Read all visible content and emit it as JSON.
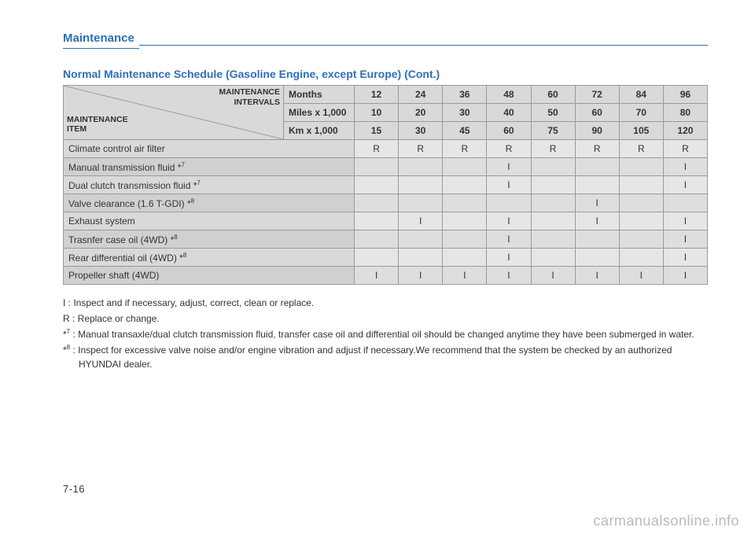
{
  "header": {
    "section": "Maintenance"
  },
  "title": "Normal Maintenance Schedule (Gasoline Engine, except Europe) (Cont.)",
  "corner": {
    "top": "MAINTENANCE\nINTERVALS",
    "bottom": "MAINTENANCE\nITEM"
  },
  "intervals": {
    "labels": [
      "Months",
      "Miles x 1,000",
      "Km x 1,000"
    ],
    "values": [
      [
        "12",
        "24",
        "36",
        "48",
        "60",
        "72",
        "84",
        "96"
      ],
      [
        "10",
        "20",
        "30",
        "40",
        "50",
        "60",
        "70",
        "80"
      ],
      [
        "15",
        "30",
        "45",
        "60",
        "75",
        "90",
        "105",
        "120"
      ]
    ]
  },
  "items": [
    {
      "name": "Climate control air filter",
      "cells": [
        "R",
        "R",
        "R",
        "R",
        "R",
        "R",
        "R",
        "R"
      ]
    },
    {
      "name": "Manual transmission fluid *",
      "sup": "7",
      "cells": [
        "",
        "",
        "",
        "I",
        "",
        "",
        "",
        "I"
      ]
    },
    {
      "name": "Dual clutch transmission fluid *",
      "sup": "7",
      "cells": [
        "",
        "",
        "",
        "I",
        "",
        "",
        "",
        "I"
      ]
    },
    {
      "name": "Valve clearance (1.6 T-GDI) *",
      "sup": "8",
      "cells": [
        "",
        "",
        "",
        "",
        "",
        "I",
        "",
        ""
      ]
    },
    {
      "name": "Exhaust system",
      "cells": [
        "",
        "I",
        "",
        "I",
        "",
        "I",
        "",
        "I"
      ]
    },
    {
      "name": "Trasnfer case oil (4WD) *",
      "sup": "8",
      "cells": [
        "",
        "",
        "",
        "I",
        "",
        "",
        "",
        "I"
      ]
    },
    {
      "name": "Rear differential oil (4WD) *",
      "sup": "8",
      "cells": [
        "",
        "",
        "",
        "I",
        "",
        "",
        "",
        "I"
      ]
    },
    {
      "name": "Propeller shaft (4WD)",
      "cells": [
        "I",
        "I",
        "I",
        "I",
        "I",
        "I",
        "I",
        "I"
      ]
    }
  ],
  "notes": {
    "I": "I : Inspect and if necessary, adjust, correct, clean or replace.",
    "R": "R : Replace or change.",
    "n7_pre": "*",
    "n7_sup": "7",
    "n7": " : Manual transaxle/dual clutch transmission fluid, transfer case oil and differential oil should be changed anytime they have been submerged in water.",
    "n8_pre": "*",
    "n8_sup": "8",
    "n8": " : Inspect for excessive valve noise and/or engine vibration and adjust if necessary.We recommend that the system be checked by an authorized HYUNDAI dealer."
  },
  "pageNumber": "7-16",
  "watermark": "carmanualsonline.info",
  "style": {
    "accent": "#2f6fb5",
    "tableBorder": "#9a9a9a",
    "headerBg": "#d9d9d9",
    "cellBg": "#e6e6e6"
  }
}
